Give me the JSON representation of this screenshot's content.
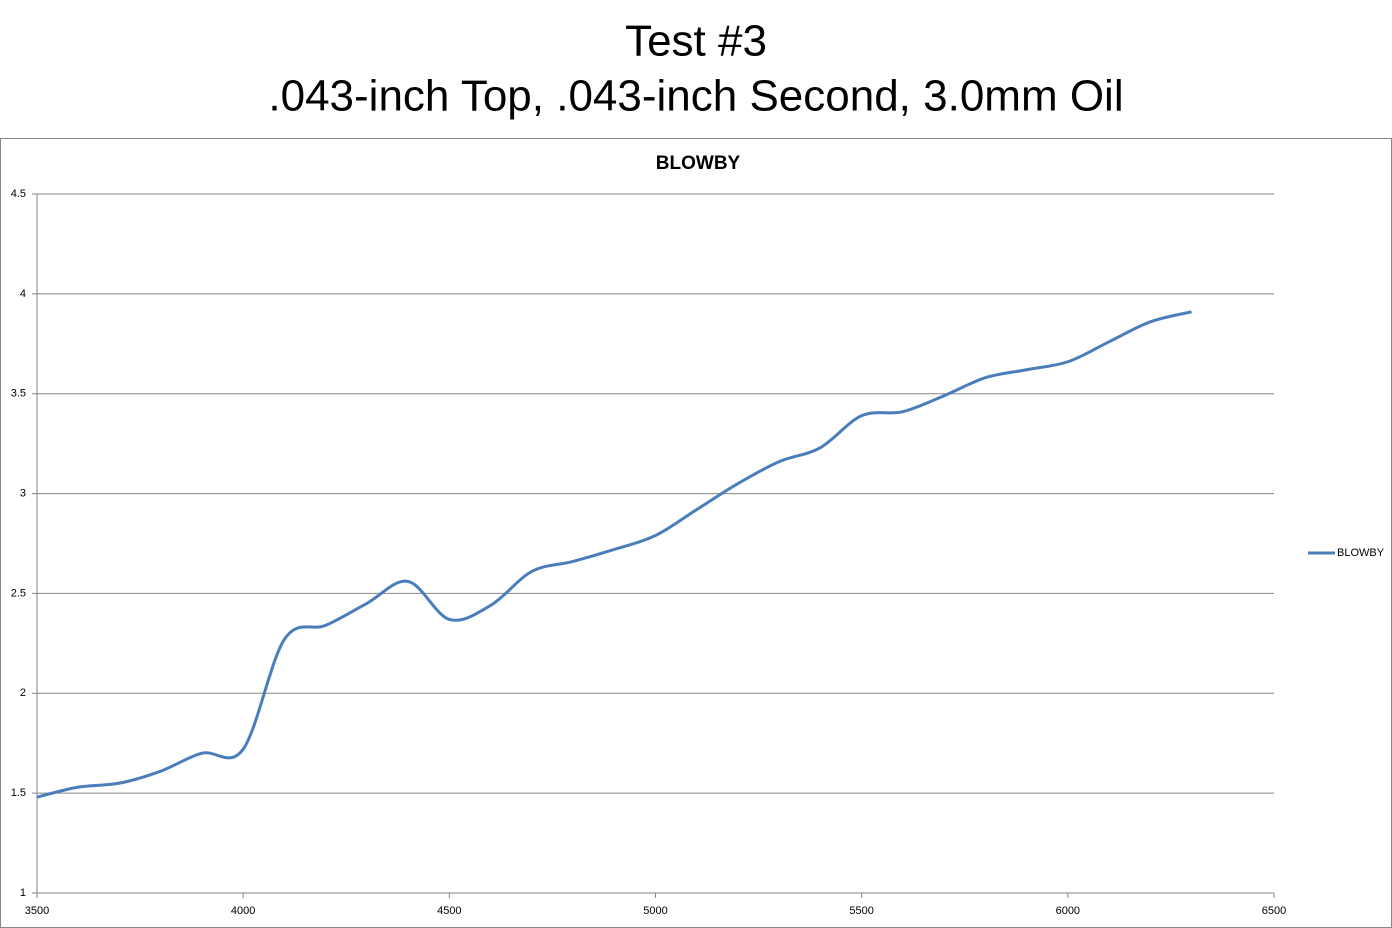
{
  "header": {
    "title": "Test #3",
    "subtitle": ".043-inch Top, .043-inch Second, 3.0mm Oil"
  },
  "chart_data": {
    "type": "line",
    "title": "BLOWBY",
    "x": [
      3500,
      3600,
      3700,
      3800,
      3900,
      4000,
      4100,
      4200,
      4300,
      4400,
      4500,
      4600,
      4700,
      4800,
      4900,
      5000,
      5100,
      5200,
      5300,
      5400,
      5500,
      5600,
      5700,
      5800,
      5900,
      6000,
      6100,
      6200,
      6300
    ],
    "series": [
      {
        "name": "BLOWBY",
        "color": "#4a7ebb",
        "values": [
          1.48,
          1.53,
          1.55,
          1.61,
          1.7,
          1.72,
          2.27,
          2.34,
          2.45,
          2.56,
          2.37,
          2.44,
          2.61,
          2.66,
          2.72,
          2.79,
          2.92,
          3.05,
          3.16,
          3.23,
          3.39,
          3.41,
          3.49,
          3.58,
          3.62,
          3.66,
          3.76,
          3.86,
          3.91
        ]
      }
    ],
    "xlim": [
      3500,
      6500
    ],
    "xticks": [
      3500,
      4000,
      4500,
      5000,
      5500,
      6000,
      6500
    ],
    "ylim": [
      1,
      4.5
    ],
    "yticks": [
      1,
      1.5,
      2,
      2.5,
      3,
      3.5,
      4,
      4.5
    ],
    "grid": true,
    "smooth": true,
    "legend": "right"
  }
}
